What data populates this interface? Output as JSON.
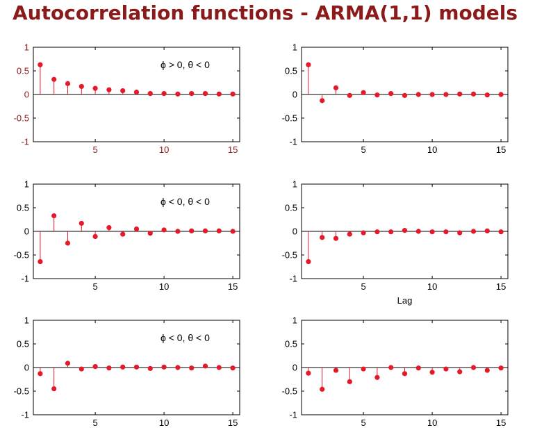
{
  "page": {
    "title": "Autocorrelation functions - ARMA(1,1) models"
  },
  "colors": {
    "title": "#8b1a1a",
    "stem": "#e41a2b",
    "axis": "#000000",
    "tick_label_dark_red": "#8b1a1a"
  },
  "chart_data": [
    {
      "type": "stem",
      "title": "",
      "annotation": "ϕ > 0, θ < 0",
      "xlabel": "",
      "ylabel": "",
      "xlim": [
        0.5,
        15.5
      ],
      "ylim": [
        -1,
        1
      ],
      "xticks": [
        5,
        10,
        15
      ],
      "yticks": [
        1,
        0.5,
        0,
        -0.5,
        -1
      ],
      "ytick_labels": [
        "1",
        "0.5",
        "0",
        "-0.5",
        "-1"
      ],
      "tick_label_color": "#8b1a1a",
      "grid": false,
      "x": [
        1,
        2,
        3,
        4,
        5,
        6,
        7,
        8,
        9,
        10,
        11,
        12,
        13,
        14,
        15
      ],
      "values": [
        0.63,
        0.32,
        0.23,
        0.17,
        0.13,
        0.1,
        0.08,
        0.05,
        0.02,
        0.02,
        0.01,
        0.02,
        0.02,
        0.01,
        0.01
      ]
    },
    {
      "type": "stem",
      "title": "",
      "annotation": "",
      "xlabel": "",
      "ylabel": "",
      "xlim": [
        0.5,
        15.5
      ],
      "ylim": [
        -1,
        1
      ],
      "xticks": [
        5,
        10,
        15
      ],
      "yticks": [
        1,
        0.5,
        0,
        -0.5,
        -1
      ],
      "ytick_labels": [
        "1",
        "0.5",
        "0",
        "-0.5",
        "-1"
      ],
      "tick_label_color": "#000000",
      "grid": false,
      "x": [
        1,
        2,
        3,
        4,
        5,
        6,
        7,
        8,
        9,
        10,
        11,
        12,
        13,
        14,
        15
      ],
      "values": [
        0.63,
        -0.13,
        0.14,
        -0.02,
        0.04,
        -0.01,
        0.02,
        -0.02,
        0.0,
        0.0,
        0.0,
        0.01,
        0.01,
        -0.01,
        0.0
      ]
    },
    {
      "type": "stem",
      "title": "",
      "annotation": "ϕ < 0, θ < 0",
      "xlabel": "",
      "ylabel": "",
      "xlim": [
        0.5,
        15.5
      ],
      "ylim": [
        -1,
        1
      ],
      "xticks": [
        5,
        10,
        15
      ],
      "yticks": [
        1,
        0.5,
        0,
        -0.5,
        -1
      ],
      "ytick_labels": [
        "1",
        "0.5",
        "0",
        "-0.5",
        "-1"
      ],
      "tick_label_color": "#000000",
      "grid": false,
      "x": [
        1,
        2,
        3,
        4,
        5,
        6,
        7,
        8,
        9,
        10,
        11,
        12,
        13,
        14,
        15
      ],
      "values": [
        -0.64,
        0.33,
        -0.25,
        0.17,
        -0.11,
        0.08,
        -0.06,
        0.05,
        -0.04,
        0.03,
        0.0,
        0.01,
        0.01,
        0.01,
        0.0
      ]
    },
    {
      "type": "stem",
      "title": "",
      "annotation": "",
      "xlabel": "Lag",
      "ylabel": "",
      "xlim": [
        0.5,
        15.5
      ],
      "ylim": [
        -1,
        1
      ],
      "xticks": [
        5,
        10,
        15
      ],
      "yticks": [
        1,
        0.5,
        0,
        -0.5,
        -1
      ],
      "ytick_labels": [
        "1",
        "0.5",
        "0",
        "-0.5",
        "-1"
      ],
      "tick_label_color": "#000000",
      "grid": false,
      "x": [
        1,
        2,
        3,
        4,
        5,
        6,
        7,
        8,
        9,
        10,
        11,
        12,
        13,
        14,
        15
      ],
      "values": [
        -0.64,
        -0.13,
        -0.15,
        -0.06,
        -0.03,
        -0.01,
        -0.01,
        0.02,
        0.0,
        -0.01,
        -0.01,
        -0.03,
        0.0,
        0.01,
        -0.01
      ]
    },
    {
      "type": "stem",
      "title": "",
      "annotation": "ϕ < 0, θ < 0",
      "xlabel": "",
      "ylabel": "",
      "xlim": [
        0.5,
        15.5
      ],
      "ylim": [
        -1,
        1
      ],
      "xticks": [
        5,
        10,
        15
      ],
      "yticks": [
        1,
        0.5,
        0,
        -0.5,
        -1
      ],
      "ytick_labels": [
        "1",
        "0.5",
        "0",
        "-0.5",
        "-1"
      ],
      "tick_label_color": "#000000",
      "grid": false,
      "x": [
        1,
        2,
        3,
        4,
        5,
        6,
        7,
        8,
        9,
        10,
        11,
        12,
        13,
        14,
        15
      ],
      "values": [
        -0.13,
        -0.45,
        0.09,
        -0.03,
        0.02,
        -0.01,
        0.01,
        0.01,
        -0.02,
        0.01,
        0.0,
        -0.01,
        0.03,
        0.0,
        -0.01
      ]
    },
    {
      "type": "stem",
      "title": "",
      "annotation": "",
      "xlabel": "",
      "ylabel": "",
      "xlim": [
        0.5,
        15.5
      ],
      "ylim": [
        -1,
        1
      ],
      "xticks": [
        5,
        10,
        15
      ],
      "yticks": [
        1,
        0.5,
        0,
        -0.5,
        -1
      ],
      "ytick_labels": [
        "1",
        "0.5",
        "0",
        "-0.5",
        "-1"
      ],
      "tick_label_color": "#000000",
      "grid": false,
      "x": [
        1,
        2,
        3,
        4,
        5,
        6,
        7,
        8,
        9,
        10,
        11,
        12,
        13,
        14,
        15
      ],
      "values": [
        -0.12,
        -0.46,
        -0.06,
        -0.3,
        -0.03,
        -0.21,
        0.0,
        -0.13,
        -0.01,
        -0.1,
        -0.03,
        -0.09,
        0.0,
        -0.06,
        -0.01
      ]
    }
  ]
}
